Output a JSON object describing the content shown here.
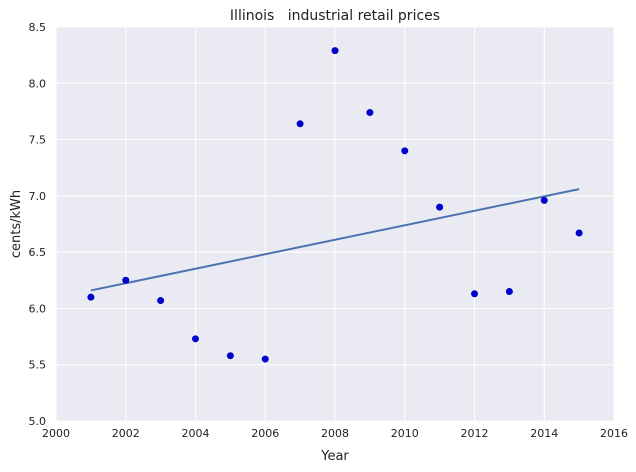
{
  "chart_data": {
    "type": "scatter",
    "title": "Illinois   industrial retail prices",
    "xlabel": "Year",
    "ylabel": "cents/kWh",
    "xlim": [
      2000,
      2016
    ],
    "ylim": [
      5.0,
      8.5
    ],
    "xticks": [
      2000,
      2002,
      2004,
      2006,
      2008,
      2010,
      2012,
      2014,
      2016
    ],
    "yticks": [
      "5.0",
      "5.5",
      "6.0",
      "6.5",
      "7.0",
      "7.5",
      "8.0",
      "8.5"
    ],
    "grid": true,
    "series": [
      {
        "kind": "scatter",
        "x": [
          2001,
          2002,
          2003,
          2004,
          2005,
          2006,
          2007,
          2008,
          2009,
          2010,
          2011,
          2012,
          2013,
          2014,
          2015
        ],
        "y": [
          6.1,
          6.25,
          6.07,
          5.73,
          5.58,
          5.55,
          7.64,
          8.29,
          7.74,
          7.4,
          6.9,
          6.13,
          6.15,
          6.96,
          6.67
        ],
        "color": "#0000cc"
      },
      {
        "kind": "line",
        "x": [
          2001,
          2015
        ],
        "y": [
          6.16,
          7.06
        ],
        "color": "#4c72b0"
      }
    ],
    "style": {
      "plot_background": "#eaeaf2",
      "grid_color": "#ffffff"
    }
  }
}
